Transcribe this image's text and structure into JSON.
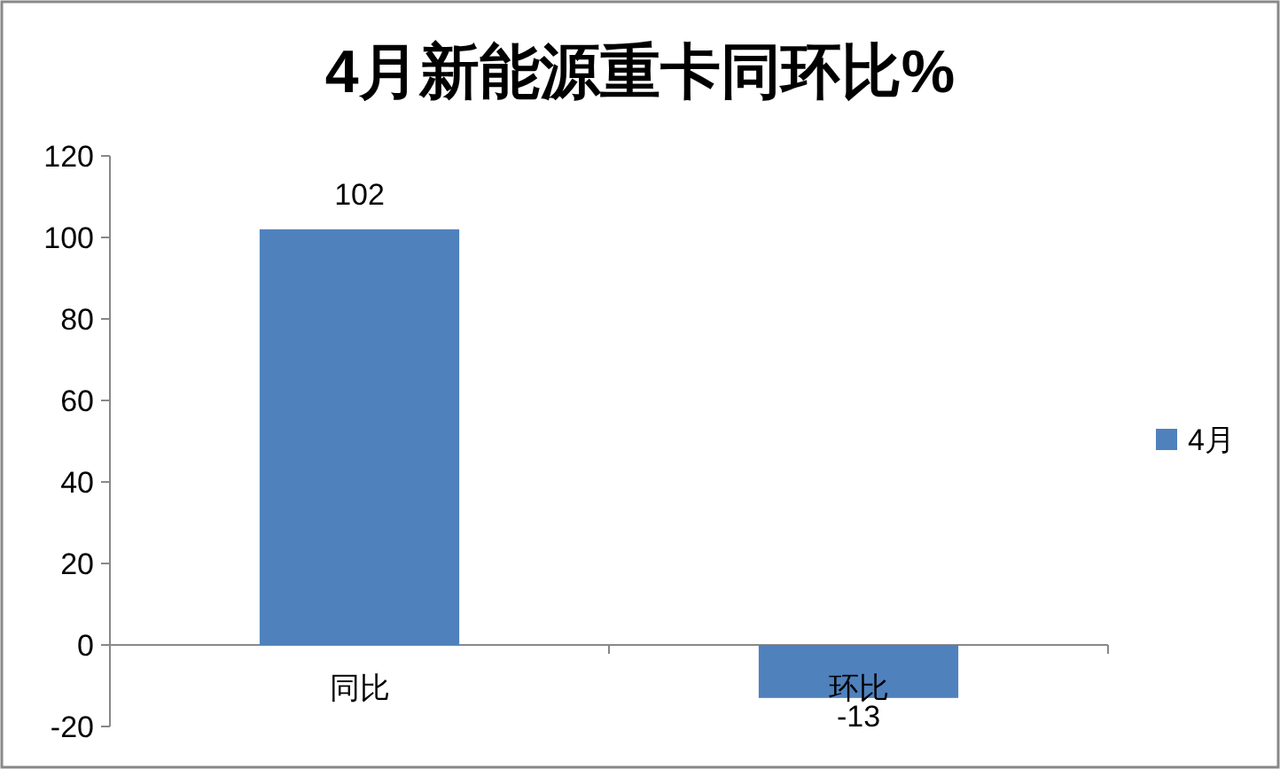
{
  "chart_data": {
    "type": "bar",
    "title": "4月新能源重卡同环比%",
    "categories": [
      "同比",
      "环比"
    ],
    "series": [
      {
        "name": "4月",
        "color": "#4f81bd",
        "values": [
          102,
          -13
        ]
      }
    ],
    "ylim": [
      -20,
      120
    ],
    "yticks": [
      -20,
      0,
      20,
      40,
      60,
      80,
      100,
      120
    ],
    "legend": "right",
    "data_labels": true
  }
}
